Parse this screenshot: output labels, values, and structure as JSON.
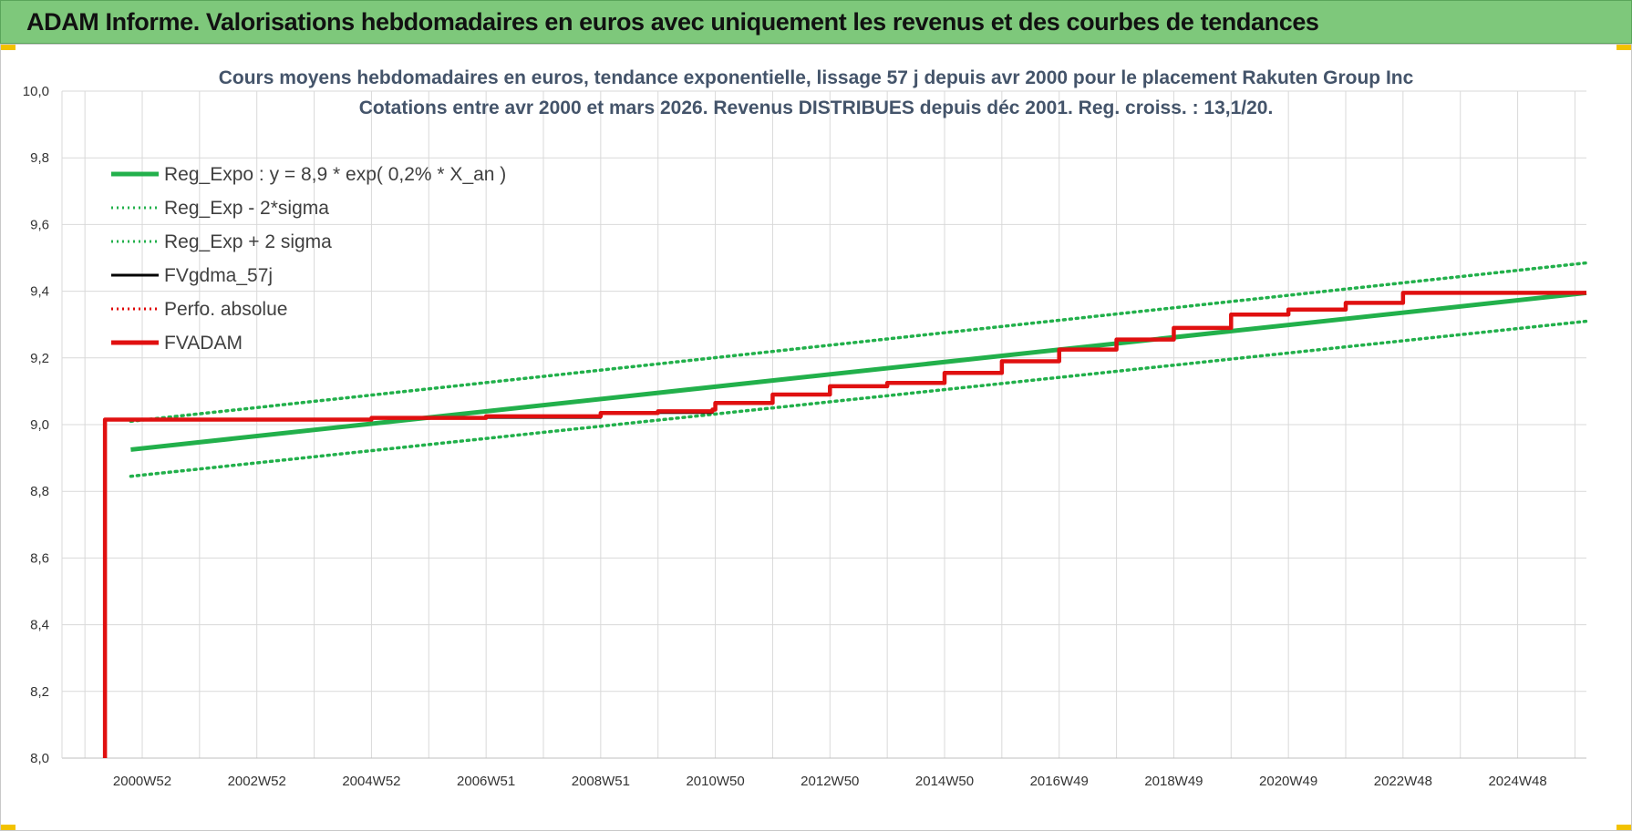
{
  "header": {
    "title": "ADAM Informe. Valorisations hebdomadaires en euros avec uniquement les revenus et des courbes de tendances"
  },
  "chart_data": {
    "type": "line",
    "title_line1": "Cours moyens hebdomadaires en euros, tendance exponentielle, lissage 57 j depuis avr 2000 pour le placement Rakuten Group Inc",
    "title_line2": "Cotations entre avr 2000 et mars 2026. Revenus DISTRIBUES depuis déc 2001. Reg. croiss. : 13,1/20.",
    "xlabel": "",
    "ylabel": "",
    "xlim": [
      1999.6,
      2026.2
    ],
    "ylim": [
      8.0,
      10.0
    ],
    "y_ticks": [
      "8,0",
      "8,2",
      "8,4",
      "8,6",
      "8,8",
      "9,0",
      "9,2",
      "9,4",
      "9,6",
      "9,8",
      "10,0"
    ],
    "x_ticks": [
      {
        "label": "2000W52",
        "x": 2001.0
      },
      {
        "label": "2002W52",
        "x": 2003.0
      },
      {
        "label": "2004W52",
        "x": 2005.0
      },
      {
        "label": "2006W51",
        "x": 2007.0
      },
      {
        "label": "2008W51",
        "x": 2009.0
      },
      {
        "label": "2010W50",
        "x": 2011.0
      },
      {
        "label": "2012W50",
        "x": 2013.0
      },
      {
        "label": "2014W50",
        "x": 2015.0
      },
      {
        "label": "2016W49",
        "x": 2017.0
      },
      {
        "label": "2018W49",
        "x": 2019.0
      },
      {
        "label": "2020W49",
        "x": 2021.0
      },
      {
        "label": "2022W48",
        "x": 2023.0
      },
      {
        "label": "2024W48",
        "x": 2025.0
      }
    ],
    "grid": true,
    "legend_position": "top-left",
    "legend": [
      {
        "name": "Reg_Expo : y = 8,9 * exp( 0,2% *  X_an )",
        "color": "#22b04b",
        "style": "solid-thick"
      },
      {
        "name": "Reg_Exp - 2*sigma",
        "color": "#22b04b",
        "style": "dotted"
      },
      {
        "name": "Reg_Exp + 2 sigma",
        "color": "#22b04b",
        "style": "dotted"
      },
      {
        "name": "FVgdma_57j",
        "color": "#000000",
        "style": "solid"
      },
      {
        "name": "Perfo. absolue",
        "color": "#e00000",
        "style": "dotted"
      },
      {
        "name": "FVADAM",
        "color": "#e01010",
        "style": "solid-thick"
      }
    ],
    "series": [
      {
        "name": "Reg_Expo : y = 8,9 * exp( 0,2% *  X_an )",
        "color": "#22b04b",
        "x": [
          2000.8,
          2026.2
        ],
        "y": [
          8.925,
          9.395
        ]
      },
      {
        "name": "Reg_Exp - 2*sigma",
        "color": "#22b04b",
        "x": [
          2000.8,
          2026.2
        ],
        "y": [
          8.845,
          9.31
        ]
      },
      {
        "name": "Reg_Exp + 2 sigma",
        "color": "#22b04b",
        "x": [
          2000.8,
          2026.2
        ],
        "y": [
          9.01,
          9.485
        ]
      },
      {
        "name": "FVgdma_57j",
        "color": "#000000",
        "x": [
          2000.35,
          2000.35,
          2001.0,
          2005.0,
          2009.0,
          2010.95,
          2011.0,
          2012.0,
          2013.0,
          2014.0,
          2015.0,
          2016.0,
          2017.0,
          2018.0,
          2019.0,
          2020.0,
          2021.0,
          2022.0,
          2023.0,
          2026.2
        ],
        "y": [
          8.0,
          9.015,
          9.015,
          9.02,
          9.035,
          9.045,
          9.065,
          9.09,
          9.115,
          9.125,
          9.155,
          9.19,
          9.225,
          9.255,
          9.29,
          9.33,
          9.345,
          9.365,
          9.395,
          9.395
        ]
      },
      {
        "name": "FVADAM",
        "color": "#e01010",
        "x": [
          2000.35,
          2000.35,
          2001.0,
          2005.0,
          2007.0,
          2009.0,
          2010.0,
          2010.95,
          2011.0,
          2012.0,
          2013.0,
          2014.0,
          2015.0,
          2016.0,
          2017.0,
          2018.0,
          2019.0,
          2020.0,
          2021.0,
          2022.0,
          2023.0,
          2026.2
        ],
        "y": [
          8.0,
          9.015,
          9.015,
          9.02,
          9.025,
          9.035,
          9.04,
          9.045,
          9.065,
          9.09,
          9.115,
          9.125,
          9.155,
          9.19,
          9.225,
          9.255,
          9.29,
          9.33,
          9.345,
          9.365,
          9.395,
          9.395
        ]
      }
    ]
  }
}
